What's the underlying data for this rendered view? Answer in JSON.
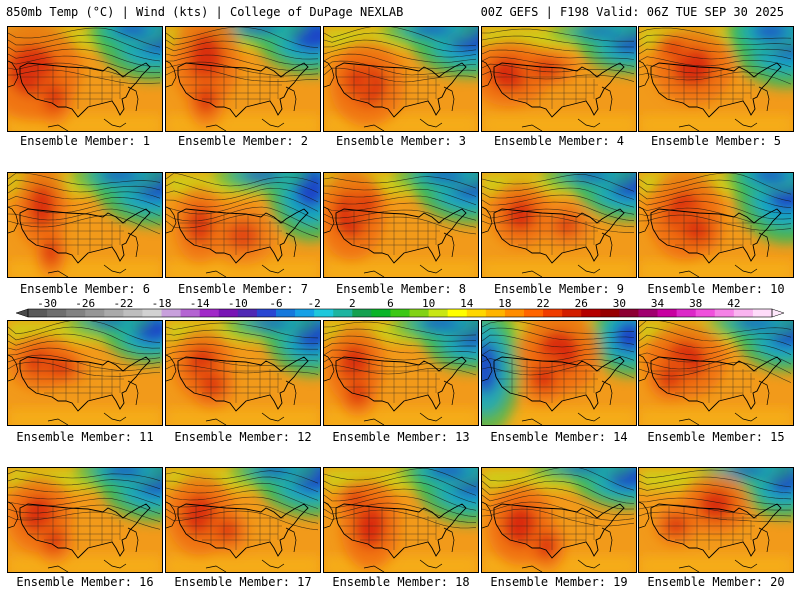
{
  "header": {
    "left_title": "850mb Temp (°C) | Wind (kts) | College of DuPage NEXLAB",
    "right_title": "00Z GEFS | F198 Valid: 06Z TUE SEP 30 2025"
  },
  "members": [
    {
      "label": "Ensemble Member: 1",
      "warm": [
        [
          0.16,
          0.42,
          0.26,
          0.4,
          0.92
        ],
        [
          0.3,
          0.68,
          0.1,
          0.22,
          0.82
        ]
      ],
      "cold": [
        [
          0.96,
          0.08,
          0.3,
          0.34,
          0.95
        ],
        [
          0.8,
          0.02,
          0.22,
          0.14,
          0.7
        ]
      ]
    },
    {
      "label": "Ensemble Member: 2",
      "warm": [
        [
          0.26,
          0.3,
          0.18,
          0.4,
          0.92
        ],
        [
          0.26,
          0.7,
          0.1,
          0.22,
          0.8
        ]
      ],
      "cold": [
        [
          0.95,
          0.08,
          0.28,
          0.3,
          0.92
        ],
        [
          0.6,
          0.0,
          0.25,
          0.12,
          0.6
        ]
      ]
    },
    {
      "label": "Ensemble Member: 3",
      "warm": [
        [
          0.28,
          0.55,
          0.2,
          0.34,
          0.92
        ],
        [
          0.2,
          0.5,
          0.1,
          0.2,
          0.65
        ]
      ],
      "cold": [
        [
          0.95,
          0.1,
          0.3,
          0.3,
          0.96
        ],
        [
          0.7,
          0.02,
          0.25,
          0.12,
          0.7
        ]
      ]
    },
    {
      "label": "Ensemble Member: 4",
      "warm": [
        [
          0.18,
          0.45,
          0.22,
          0.26,
          0.95
        ],
        [
          0.42,
          0.4,
          0.16,
          0.14,
          0.82
        ]
      ],
      "cold": [
        [
          0.96,
          0.12,
          0.26,
          0.26,
          0.9
        ],
        [
          0.75,
          0.04,
          0.24,
          0.1,
          0.6
        ]
      ]
    },
    {
      "label": "Ensemble Member: 5",
      "warm": [
        [
          0.35,
          0.38,
          0.22,
          0.3,
          0.95
        ],
        [
          0.22,
          0.2,
          0.1,
          0.12,
          0.75
        ]
      ],
      "cold": [
        [
          0.96,
          0.12,
          0.28,
          0.36,
          0.96
        ],
        [
          0.85,
          0.04,
          0.22,
          0.16,
          0.75
        ]
      ]
    },
    {
      "label": "Ensemble Member: 6",
      "warm": [
        [
          0.22,
          0.32,
          0.14,
          0.34,
          0.9
        ],
        [
          0.28,
          0.76,
          0.08,
          0.2,
          0.85
        ]
      ],
      "cold": [
        [
          0.95,
          0.1,
          0.3,
          0.32,
          0.95
        ],
        [
          0.72,
          0.02,
          0.24,
          0.14,
          0.65
        ]
      ]
    },
    {
      "label": "Ensemble Member: 7",
      "warm": [
        [
          0.22,
          0.5,
          0.14,
          0.3,
          0.8
        ],
        [
          0.5,
          0.6,
          0.18,
          0.24,
          0.6
        ]
      ],
      "cold": [
        [
          0.94,
          0.14,
          0.22,
          0.4,
          0.92
        ],
        [
          0.62,
          0.02,
          0.24,
          0.12,
          0.65
        ]
      ]
    },
    {
      "label": "Ensemble Member: 8",
      "warm": [
        [
          0.18,
          0.4,
          0.18,
          0.36,
          0.95
        ],
        [
          0.28,
          0.3,
          0.1,
          0.18,
          0.75
        ]
      ],
      "cold": [
        [
          0.95,
          0.1,
          0.28,
          0.3,
          0.95
        ],
        [
          0.78,
          0.02,
          0.25,
          0.12,
          0.7
        ]
      ]
    },
    {
      "label": "Ensemble Member: 9",
      "warm": [
        [
          0.25,
          0.4,
          0.16,
          0.26,
          0.9
        ],
        [
          0.55,
          0.5,
          0.14,
          0.18,
          0.6
        ]
      ],
      "cold": [
        [
          0.96,
          0.1,
          0.28,
          0.28,
          0.96
        ],
        [
          0.7,
          0.02,
          0.24,
          0.12,
          0.65
        ]
      ]
    },
    {
      "label": "Ensemble Member: 10",
      "warm": [
        [
          0.3,
          0.4,
          0.2,
          0.36,
          0.96
        ],
        [
          0.38,
          0.55,
          0.14,
          0.2,
          0.82
        ]
      ],
      "cold": [
        [
          0.96,
          0.16,
          0.26,
          0.4,
          0.97
        ],
        [
          0.85,
          0.02,
          0.22,
          0.14,
          0.75
        ]
      ]
    },
    {
      "label": "Ensemble Member: 11",
      "warm": [
        [
          0.22,
          0.4,
          0.18,
          0.22,
          0.92
        ],
        [
          0.35,
          0.45,
          0.14,
          0.14,
          0.78
        ]
      ],
      "cold": [
        [
          0.94,
          0.08,
          0.25,
          0.26,
          0.92
        ],
        [
          0.65,
          0.0,
          0.22,
          0.12,
          0.55
        ]
      ]
    },
    {
      "label": "Ensemble Member: 12",
      "warm": [
        [
          0.24,
          0.42,
          0.16,
          0.28,
          0.9
        ],
        [
          0.3,
          0.62,
          0.12,
          0.18,
          0.78
        ]
      ],
      "cold": [
        [
          0.95,
          0.12,
          0.24,
          0.32,
          0.92
        ],
        [
          0.68,
          0.02,
          0.24,
          0.12,
          0.6
        ]
      ]
    },
    {
      "label": "Ensemble Member: 13",
      "warm": [
        [
          0.2,
          0.42,
          0.16,
          0.32,
          0.94
        ],
        [
          0.22,
          0.7,
          0.1,
          0.18,
          0.82
        ]
      ],
      "cold": [
        [
          0.95,
          0.1,
          0.25,
          0.3,
          0.95
        ],
        [
          0.75,
          0.02,
          0.24,
          0.14,
          0.65
        ]
      ]
    },
    {
      "label": "Ensemble Member: 14",
      "warm": [
        [
          0.5,
          0.3,
          0.22,
          0.34,
          0.96
        ],
        [
          0.4,
          0.55,
          0.12,
          0.2,
          0.85
        ]
      ],
      "cold": [
        [
          0.02,
          0.45,
          0.18,
          0.5,
          0.82
        ],
        [
          0.96,
          0.15,
          0.2,
          0.3,
          0.9
        ]
      ]
    },
    {
      "label": "Ensemble Member: 15",
      "warm": [
        [
          0.3,
          0.38,
          0.22,
          0.3,
          0.95
        ],
        [
          0.2,
          0.55,
          0.12,
          0.18,
          0.8
        ]
      ],
      "cold": [
        [
          0.96,
          0.1,
          0.26,
          0.3,
          0.96
        ],
        [
          0.75,
          0.02,
          0.24,
          0.12,
          0.65
        ]
      ]
    },
    {
      "label": "Ensemble Member: 16",
      "warm": [
        [
          0.2,
          0.45,
          0.18,
          0.3,
          0.93
        ],
        [
          0.3,
          0.7,
          0.1,
          0.18,
          0.8
        ]
      ],
      "cold": [
        [
          0.95,
          0.1,
          0.28,
          0.32,
          0.95
        ],
        [
          0.75,
          0.02,
          0.24,
          0.14,
          0.7
        ]
      ]
    },
    {
      "label": "Ensemble Member: 17",
      "warm": [
        [
          0.22,
          0.45,
          0.18,
          0.32,
          0.93
        ],
        [
          0.4,
          0.6,
          0.12,
          0.18,
          0.72
        ]
      ],
      "cold": [
        [
          0.95,
          0.08,
          0.28,
          0.3,
          0.95
        ],
        [
          0.7,
          0.02,
          0.22,
          0.12,
          0.65
        ]
      ]
    },
    {
      "label": "Ensemble Member: 18",
      "warm": [
        [
          0.3,
          0.55,
          0.16,
          0.36,
          0.96
        ],
        [
          0.2,
          0.3,
          0.1,
          0.14,
          0.7
        ]
      ],
      "cold": [
        [
          0.95,
          0.1,
          0.28,
          0.34,
          0.96
        ],
        [
          0.8,
          0.02,
          0.24,
          0.14,
          0.72
        ]
      ]
    },
    {
      "label": "Ensemble Member: 19",
      "warm": [
        [
          0.25,
          0.55,
          0.18,
          0.32,
          0.96
        ],
        [
          0.42,
          0.75,
          0.1,
          0.2,
          0.85
        ]
      ],
      "cold": [
        [
          0.95,
          0.08,
          0.28,
          0.24,
          0.92
        ],
        [
          0.65,
          0.0,
          0.26,
          0.1,
          0.6
        ]
      ]
    },
    {
      "label": "Ensemble Member: 20",
      "warm": [
        [
          0.5,
          0.35,
          0.18,
          0.24,
          0.94
        ],
        [
          0.24,
          0.55,
          0.12,
          0.16,
          0.8
        ]
      ],
      "cold": [
        [
          0.94,
          0.1,
          0.22,
          0.3,
          0.92
        ],
        [
          0.7,
          0.02,
          0.24,
          0.12,
          0.62
        ]
      ]
    }
  ],
  "colorbar": {
    "labels": [
      "-30",
      "-26",
      "-22",
      "-18",
      "-14",
      "-10",
      "-6",
      "-2",
      "2",
      "6",
      "10",
      "14",
      "18",
      "22",
      "26",
      "30",
      "34",
      "38",
      "42"
    ],
    "colors": [
      "#5a5a5a",
      "#6e6e6e",
      "#828282",
      "#969696",
      "#aaaaaa",
      "#bebebe",
      "#d2d2d2",
      "#c8a0dc",
      "#b464d2",
      "#a028c8",
      "#7814b4",
      "#5028b4",
      "#2846d2",
      "#1478dc",
      "#14a0e6",
      "#1ec8dc",
      "#1eb4a0",
      "#14a050",
      "#0ab428",
      "#3cc814",
      "#82d214",
      "#c8e614",
      "#ffff00",
      "#ffd700",
      "#ffb400",
      "#ff8c00",
      "#ff6400",
      "#f03c00",
      "#d21e00",
      "#b40000",
      "#960000",
      "#8c0032",
      "#a0006e",
      "#c800a0",
      "#dc28c8",
      "#f050dc",
      "#f582e6",
      "#fab4f0",
      "#ffdcfa"
    ]
  }
}
